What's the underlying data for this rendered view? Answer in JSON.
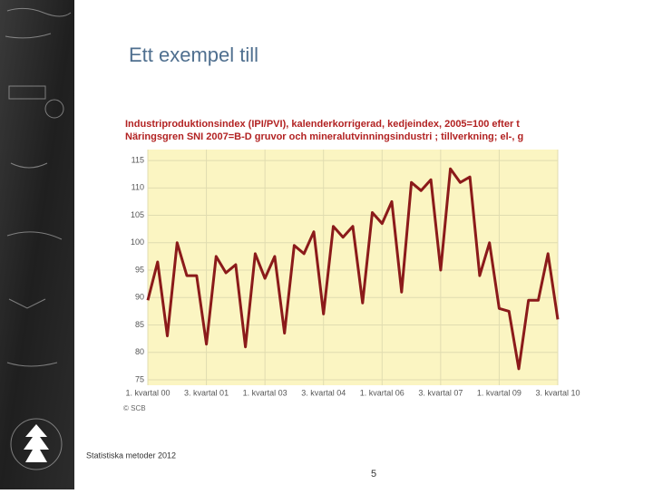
{
  "slide": {
    "title": "Ett exempel till",
    "footer": "Statistiska metoder 2012",
    "page_number": "5"
  },
  "chart_data": {
    "type": "line",
    "title": "Industriproduktionsindex (IPI/PVI), kalenderkorrigerad, kedjeindex, 2005=100 efter t",
    "subtitle": "Näringsgren SNI 2007=B-D gruvor och mineralutvinningsindustri ; tillverkning; el-, g",
    "source": "© SCB",
    "categories": [
      "1. kvartal 00",
      null,
      null,
      null,
      null,
      null,
      "3. kvartal 01",
      null,
      null,
      null,
      null,
      null,
      "1. kvartal 03",
      null,
      null,
      null,
      null,
      null,
      "3. kvartal 04",
      null,
      null,
      null,
      null,
      null,
      "1. kvartal 06",
      null,
      null,
      null,
      null,
      null,
      "3. kvartal 07",
      null,
      null,
      null,
      null,
      null,
      "1. kvartal 09",
      null,
      null,
      null,
      null,
      null,
      "3. kvartal 10"
    ],
    "values": [
      89.5,
      96.5,
      83,
      100,
      94,
      94,
      81.5,
      97.5,
      94.5,
      96,
      81,
      98,
      93.5,
      97.5,
      83.5,
      99.5,
      98,
      102,
      87,
      103,
      101,
      103,
      89,
      105.5,
      103.5,
      107.5,
      91,
      111,
      109.5,
      111.5,
      95,
      113.5,
      111,
      112,
      94,
      100,
      88,
      87.5,
      77,
      89.5,
      89.5,
      98,
      86
    ],
    "color": "#8b1a1a",
    "ylim": [
      74,
      117
    ],
    "yticks": [
      75,
      80,
      85,
      90,
      95,
      100,
      105,
      110,
      115
    ],
    "grid": true
  }
}
